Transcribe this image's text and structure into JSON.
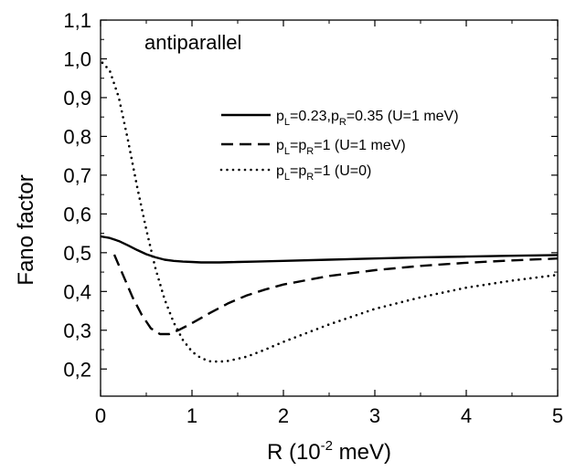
{
  "chart_data": {
    "type": "line",
    "annotation": "antiparallel",
    "xlabel": {
      "prefix": "R (10",
      "exponent": "-2",
      "suffix": " meV)"
    },
    "ylabel": "Fano factor",
    "xlim": [
      0,
      5
    ],
    "ylim": [
      0.13,
      1.1
    ],
    "xticks": [
      0,
      1,
      2,
      3,
      4,
      5
    ],
    "xtick_labels": [
      "0",
      "1",
      "2",
      "3",
      "4",
      "5"
    ],
    "yticks": [
      0.2,
      0.3,
      0.4,
      0.5,
      0.6,
      0.7,
      0.8,
      0.9,
      1.0,
      1.1
    ],
    "ytick_labels": [
      "0,2",
      "0,3",
      "0,4",
      "0,5",
      "0,6",
      "0,7",
      "0,8",
      "0,9",
      "1,0",
      "1,1"
    ],
    "grid": false,
    "legend_position": "upper-right",
    "series": [
      {
        "key": "solid",
        "style": "solid",
        "legend": [
          {
            "t": "p",
            "s": false
          },
          {
            "t": "L",
            "s": true
          },
          {
            "t": "=0.23,p",
            "s": false
          },
          {
            "t": "R",
            "s": true
          },
          {
            "t": "=0.35 (U=1 meV)",
            "s": false
          }
        ],
        "x": [
          0.0,
          0.1,
          0.2,
          0.3,
          0.4,
          0.5,
          0.6,
          0.7,
          0.8,
          0.9,
          1.0,
          1.1,
          1.2,
          1.3,
          1.5,
          1.7,
          2.0,
          2.5,
          3.0,
          3.5,
          4.0,
          4.5,
          5.0
        ],
        "y": [
          0.542,
          0.538,
          0.53,
          0.519,
          0.507,
          0.496,
          0.488,
          0.482,
          0.479,
          0.477,
          0.476,
          0.475,
          0.475,
          0.475,
          0.476,
          0.477,
          0.479,
          0.482,
          0.485,
          0.488,
          0.49,
          0.492,
          0.494
        ]
      },
      {
        "key": "dashed",
        "style": "dashed",
        "legend": [
          {
            "t": "p",
            "s": false
          },
          {
            "t": "L",
            "s": true
          },
          {
            "t": "=p",
            "s": false
          },
          {
            "t": "R",
            "s": true
          },
          {
            "t": "=1 (U=1 meV)",
            "s": false
          }
        ],
        "x": [
          0.15,
          0.25,
          0.35,
          0.45,
          0.55,
          0.65,
          0.75,
          0.85,
          0.95,
          1.05,
          1.2,
          1.4,
          1.6,
          1.8,
          2.0,
          2.5,
          3.0,
          3.5,
          4.0,
          4.5,
          5.0
        ],
        "y": [
          0.495,
          0.44,
          0.385,
          0.34,
          0.305,
          0.29,
          0.29,
          0.3,
          0.312,
          0.325,
          0.345,
          0.37,
          0.39,
          0.405,
          0.418,
          0.44,
          0.455,
          0.466,
          0.474,
          0.48,
          0.485
        ]
      },
      {
        "key": "dotted",
        "style": "dotted",
        "legend": [
          {
            "t": "p",
            "s": false
          },
          {
            "t": "L",
            "s": true
          },
          {
            "t": "=p",
            "s": false
          },
          {
            "t": "R",
            "s": true
          },
          {
            "t": "=1 (U=0)",
            "s": false
          }
        ],
        "x": [
          0.02,
          0.1,
          0.2,
          0.3,
          0.4,
          0.5,
          0.6,
          0.7,
          0.8,
          0.9,
          1.0,
          1.1,
          1.2,
          1.3,
          1.4,
          1.6,
          1.8,
          2.0,
          2.5,
          3.0,
          3.5,
          4.0,
          4.5,
          5.0
        ],
        "y": [
          0.99,
          0.97,
          0.9,
          0.79,
          0.67,
          0.56,
          0.46,
          0.38,
          0.32,
          0.275,
          0.245,
          0.228,
          0.22,
          0.219,
          0.221,
          0.232,
          0.25,
          0.27,
          0.315,
          0.355,
          0.385,
          0.41,
          0.428,
          0.443
        ]
      }
    ]
  }
}
